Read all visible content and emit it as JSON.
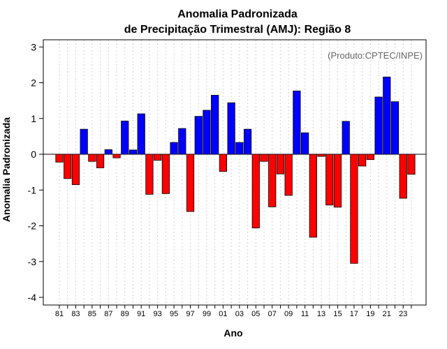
{
  "chart_data": {
    "type": "bar",
    "title_line1": "Anomalia Padronizada",
    "title_line2": "de Precipitação Trimestral (AMJ): Região 8",
    "credit": "(Produto:CPTEC/INPE)",
    "xlabel": "Ano",
    "ylabel": "Anomalia Padronizada",
    "ylim": [
      -4,
      3
    ],
    "yticks": [
      "-4",
      "-3",
      "-2",
      "-1",
      "0",
      "1",
      "2",
      "3"
    ],
    "grid": "vertical-dotted",
    "colors": {
      "positive": "#0000ff",
      "negative": "#ff0000",
      "outline": "#000000",
      "grid": "#d3d3d3"
    },
    "categories": [
      "81",
      "82",
      "83",
      "84",
      "85",
      "86",
      "87",
      "88",
      "89",
      "90",
      "91",
      "92",
      "93",
      "94",
      "95",
      "96",
      "97",
      "98",
      "99",
      "00",
      "01",
      "02",
      "03",
      "04",
      "05",
      "06",
      "07",
      "08",
      "09",
      "10",
      "11",
      "12",
      "13",
      "14",
      "15",
      "16",
      "17",
      "18",
      "19",
      "20",
      "21",
      "22",
      "23",
      "24"
    ],
    "xtick_labels": [
      "81",
      "83",
      "85",
      "87",
      "89",
      "91",
      "93",
      "95",
      "97",
      "99",
      "01",
      "03",
      "05",
      "07",
      "09",
      "11",
      "13",
      "15",
      "17",
      "19",
      "21",
      "23"
    ],
    "values": [
      -0.22,
      -0.68,
      -0.85,
      0.7,
      -0.2,
      -0.38,
      0.13,
      -0.1,
      0.93,
      0.12,
      1.13,
      -1.12,
      -0.17,
      -1.1,
      0.33,
      0.72,
      -1.6,
      1.06,
      1.23,
      1.65,
      -0.48,
      1.44,
      0.33,
      0.7,
      -2.06,
      -0.2,
      -1.47,
      -0.55,
      -1.15,
      1.77,
      0.6,
      -2.32,
      -0.06,
      -1.42,
      -1.48,
      0.92,
      -3.05,
      -0.33,
      -0.15,
      1.6,
      2.16,
      1.47,
      -1.23,
      -0.56
    ]
  }
}
